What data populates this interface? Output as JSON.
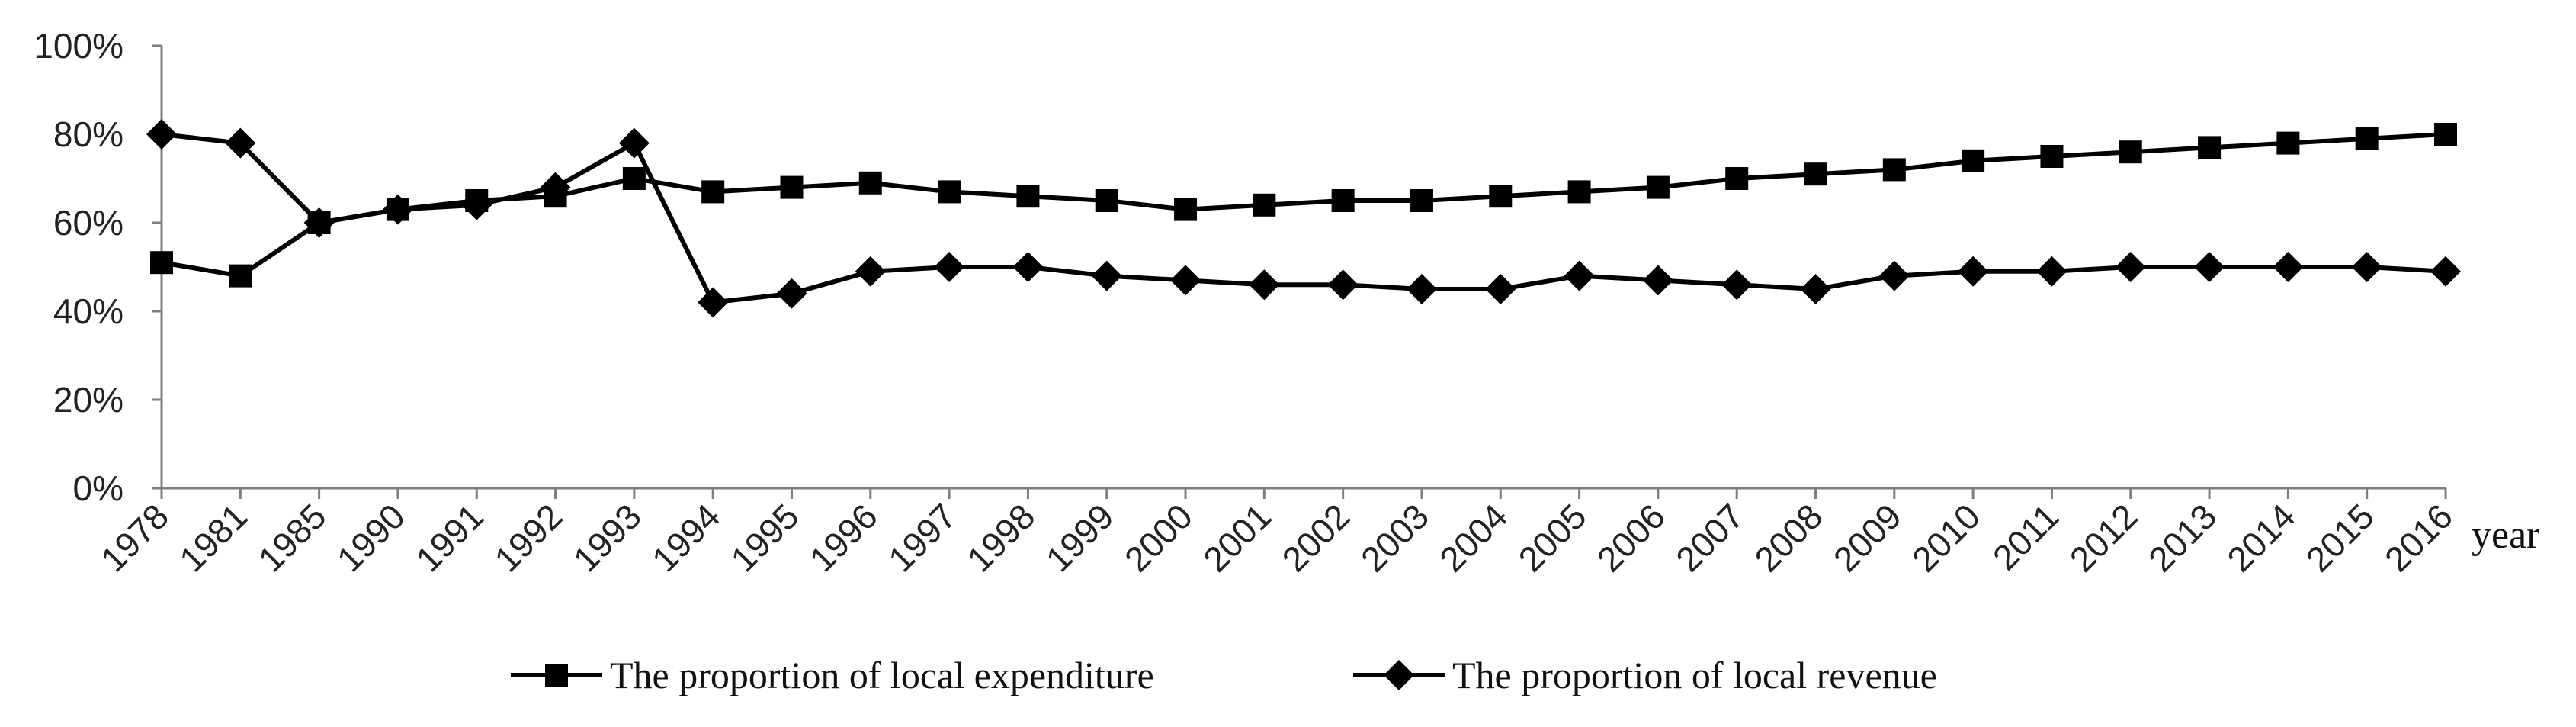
{
  "chart_data": {
    "type": "line",
    "title": "",
    "xlabel": "year",
    "ylabel": "",
    "ylim": [
      0,
      100
    ],
    "y_ticks": [
      "0%",
      "20%",
      "40%",
      "60%",
      "80%",
      "100%"
    ],
    "y_tick_values": [
      0,
      20,
      40,
      60,
      80,
      100
    ],
    "legend_position": "bottom-center",
    "grid": false,
    "categories": [
      "1978",
      "1981",
      "1985",
      "1990",
      "1991",
      "1992",
      "1993",
      "1994",
      "1995",
      "1996",
      "1997",
      "1998",
      "1999",
      "2000",
      "2001",
      "2002",
      "2003",
      "2004",
      "2005",
      "2006",
      "2007",
      "2008",
      "2009",
      "2010",
      "2011",
      "2012",
      "2013",
      "2014",
      "2015",
      "2016"
    ],
    "series": [
      {
        "name": "The proportion of local expenditure",
        "marker": "square",
        "color": "#000000",
        "values": [
          51,
          48,
          60,
          63,
          65,
          66,
          70,
          67,
          68,
          69,
          67,
          66,
          65,
          63,
          64,
          65,
          65,
          66,
          67,
          68,
          70,
          71,
          72,
          74,
          75,
          76,
          77,
          78,
          79,
          80
        ]
      },
      {
        "name": "The proportion of local revenue",
        "marker": "diamond",
        "color": "#000000",
        "values": [
          80,
          78,
          60,
          63,
          64,
          68,
          78,
          42,
          44,
          49,
          50,
          50,
          48,
          47,
          46,
          46,
          45,
          45,
          48,
          47,
          46,
          45,
          48,
          49,
          49,
          50,
          50,
          50,
          50,
          49
        ]
      }
    ]
  }
}
